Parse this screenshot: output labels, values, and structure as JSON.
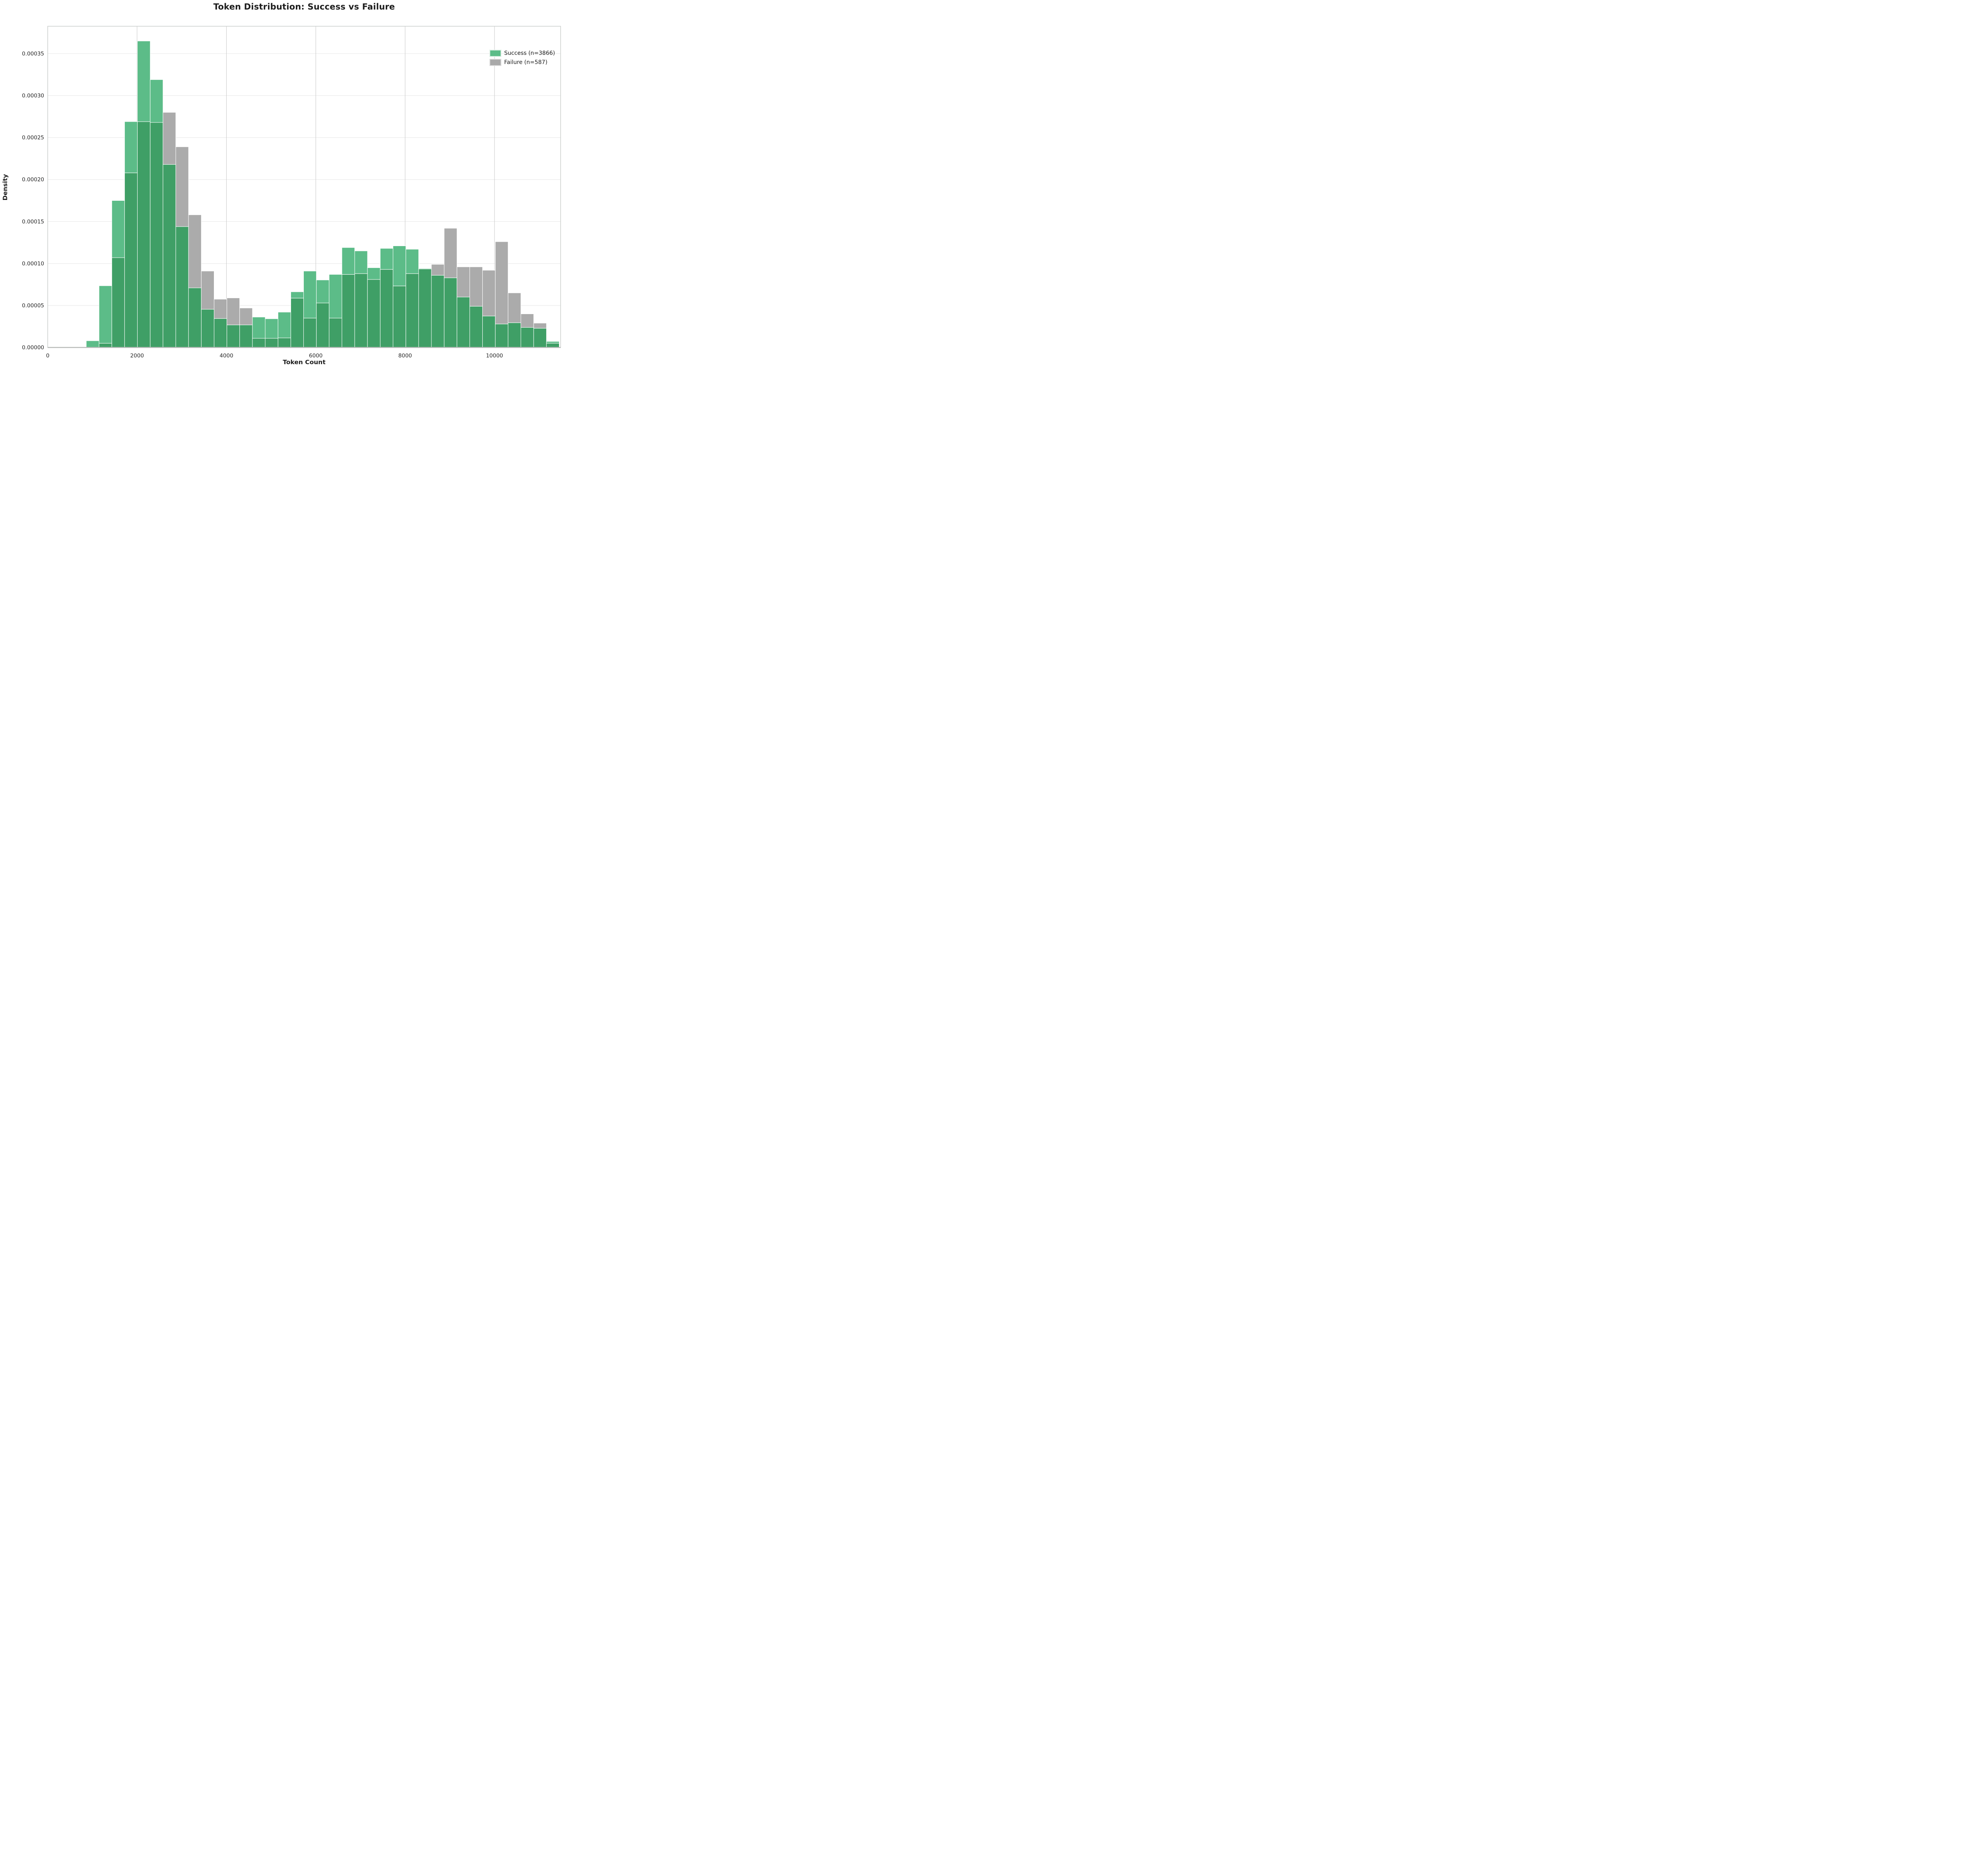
{
  "title": "Token Distribution: Success vs Failure",
  "axes": {
    "xlabel": "Token Count",
    "ylabel": "Density"
  },
  "legend": [
    {
      "label": "Success (n=3866)",
      "color": "#5cbc88",
      "border": "#d9eee2"
    },
    {
      "label": "Failure (n=587)",
      "color": "#a9a9a9",
      "border": "#dcdcdc"
    }
  ],
  "colors": {
    "success_fill": "#5cbc88",
    "failure_fill": "#ababab",
    "overlap_fill": "#3f9f66",
    "bar_edge": "#ffffff",
    "grid_horizontal": "#ececec",
    "grid_vertical": "#c7c7c7",
    "spine": "#cdd0ce",
    "axis_bottom": "#b7bab8",
    "tick_text": "#262626",
    "label_text": "#1c1c1c"
  },
  "chart_data": {
    "type": "bar",
    "subtype": "overlaid-density-histogram",
    "title": "Token Distribution: Success vs Failure",
    "xlabel": "Token Count",
    "ylabel": "Density",
    "xlim": [
      0,
      11480
    ],
    "ylim": [
      0,
      0.0003826
    ],
    "xticks": [
      0,
      2000,
      4000,
      6000,
      8000,
      10000
    ],
    "yticks": [
      0.0,
      5e-05,
      0.0001,
      0.00015,
      0.0002,
      0.00025,
      0.0003,
      0.00035
    ],
    "ytick_format_decimals": 5,
    "grid": true,
    "legend_position": "upper right",
    "bin_edges": [
      863,
      1149,
      1435,
      1721,
      2007,
      2294,
      2580,
      2866,
      3152,
      3438,
      3724,
      4010,
      4296,
      4582,
      4868,
      5155,
      5441,
      5727,
      6013,
      6299,
      6585,
      6871,
      7157,
      7443,
      7729,
      8016,
      8302,
      8588,
      8874,
      9160,
      9446,
      9732,
      10018,
      10304,
      10590,
      10877,
      11163,
      11449
    ],
    "series": [
      {
        "name": "Success (n=3866)",
        "n": 3866,
        "values": [
          8e-06,
          7.35e-05,
          0.000175,
          0.000269,
          0.000365,
          0.000319,
          0.000218,
          0.000144,
          7.1e-05,
          4.55e-05,
          3.45e-05,
          2.69e-05,
          2.69e-05,
          3.62e-05,
          3.42e-05,
          4.21e-05,
          6.63e-05,
          9.1e-05,
          8.04e-05,
          8.7e-05,
          0.000119,
          0.000115,
          9.5e-05,
          0.000118,
          0.000121,
          0.000117,
          9.42e-05,
          8.6e-05,
          8.3e-05,
          6.01e-05,
          4.91e-05,
          3.75e-05,
          2.8e-05,
          2.95e-05,
          2.39e-05,
          2.29e-05,
          7.2e-06
        ]
      },
      {
        "name": "Failure (n=587)",
        "n": 587,
        "values": [
          0,
          5e-06,
          0.000107,
          0.000208,
          0.000269,
          0.000268,
          0.00028,
          0.000239,
          0.000158,
          9.1e-05,
          5.75e-05,
          5.9e-05,
          4.7e-05,
          1.09e-05,
          1.09e-05,
          1.14e-05,
          5.88e-05,
          3.5e-05,
          5.3e-05,
          3.5e-05,
          8.7e-05,
          8.8e-05,
          8.1e-05,
          9.3e-05,
          7.33e-05,
          8.8e-05,
          9.35e-05,
          9.9e-05,
          0.000142,
          9.6e-05,
          9.6e-05,
          9.2e-05,
          0.000126,
          6.5e-05,
          4e-05,
          2.9e-05,
          5.1e-06
        ]
      }
    ]
  }
}
